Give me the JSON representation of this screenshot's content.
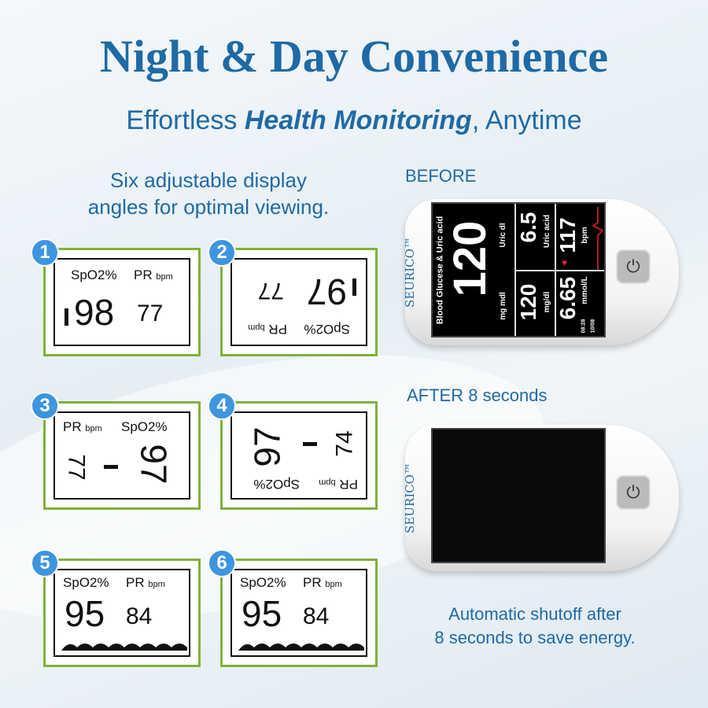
{
  "title": "Night & Day Convenience",
  "subtitle": {
    "pre": "Effortless ",
    "bold": "Health Monitoring",
    "post": ", Anytime"
  },
  "left_caption": {
    "line1": "Six adjustable display",
    "line2": "angles for optimal viewing."
  },
  "panels": [
    {
      "n": "1",
      "spo2_label": "SpO2%",
      "pr_label": "PR",
      "pr_unit": "bpm",
      "spo2": "98",
      "pr": "77"
    },
    {
      "n": "2",
      "spo2_label": "SpO2%",
      "pr_label": "PR",
      "pr_unit": "bpm",
      "spo2": "97",
      "pr": "77"
    },
    {
      "n": "3",
      "spo2_label": "SpO2%",
      "pr_label": "PR",
      "pr_unit": "bpm",
      "spo2": "97",
      "pr": "77"
    },
    {
      "n": "4",
      "spo2_label": "SpO2%",
      "pr_label": "PR",
      "pr_unit": "bpm",
      "spo2": "97",
      "pr": "74"
    },
    {
      "n": "5",
      "spo2_label": "SpO2%",
      "pr_label": "PR",
      "pr_unit": "bpm",
      "spo2": "95",
      "pr": "84"
    },
    {
      "n": "6",
      "spo2_label": "SpO2%",
      "pr_label": "PR",
      "pr_unit": "bpm",
      "spo2": "95",
      "pr": "84"
    }
  ],
  "before_label": "BEFORE",
  "after_label": "AFTER 8 seconds",
  "brand": "SEURICO™",
  "device_screen": {
    "header": "Blood Glucese & Uric acid",
    "main_value": "120",
    "main_unit": "mg mdl",
    "uric_value": "6.5",
    "uric_unit": "Uric acid",
    "uric_dl": "Uric dl",
    "bpm_value": "117",
    "bpm_unit": "bpm",
    "glucose_value": "120",
    "glucose_unit": "mg/dl",
    "mmol_value": "6.65",
    "mmol_unit": "mmol/L",
    "time": "08:28",
    "date": "10/08"
  },
  "right_caption": {
    "line1": "Automatic shutoff after",
    "line2": "8 seconds to save energy."
  },
  "colors": {
    "brand_blue": "#1f6aa5",
    "panel_border": "#7fb13c",
    "badge": "#3d95e0"
  }
}
